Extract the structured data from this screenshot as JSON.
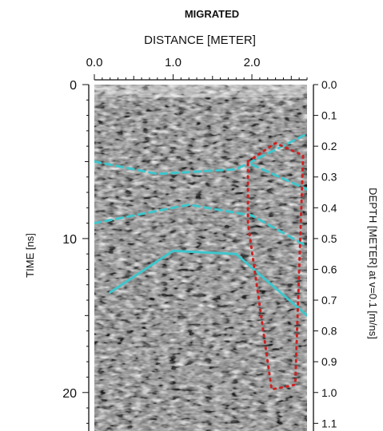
{
  "chart_data": {
    "type": "radargram",
    "title": "MIGRATED",
    "xlabel": "DISTANCE [METER]",
    "ylabel_left": "TIME [ns]",
    "ylabel_right": "DEPTH [METER] at v=0.1 [m/ns]",
    "x_ticks": [
      "0.0",
      "1.0",
      "2.0"
    ],
    "x_tick_values": [
      0,
      1,
      2
    ],
    "xlim": [
      0,
      2.7
    ],
    "time_ticks": [
      "0",
      "10",
      "20"
    ],
    "time_tick_values": [
      0,
      10,
      20
    ],
    "time_lim": [
      0,
      22.5
    ],
    "depth_ticks": [
      "0.0",
      "0.1",
      "0.2",
      "0.3",
      "0.4",
      "0.5",
      "0.6",
      "0.7",
      "0.8",
      "0.9",
      "1.0",
      "1.1"
    ],
    "depth_tick_values": [
      0,
      0.1,
      0.2,
      0.3,
      0.4,
      0.5,
      0.6,
      0.7,
      0.8,
      0.9,
      1.0,
      1.1
    ],
    "velocity_m_per_ns": 0.1,
    "colors": {
      "interpretation": "#3ec6cc",
      "zone": "#cc2222",
      "axis": "#111111"
    },
    "interpretations": [
      {
        "style": "dashed",
        "points": [
          [
            0,
            5.0
          ],
          [
            0.8,
            5.8
          ],
          [
            1.8,
            5.5
          ],
          [
            2.7,
            3.2
          ]
        ]
      },
      {
        "style": "dashed",
        "points": [
          [
            0,
            9.0
          ],
          [
            1.2,
            7.8
          ],
          [
            2.0,
            8.5
          ],
          [
            2.7,
            10.5
          ]
        ]
      },
      {
        "style": "dashed",
        "points": [
          [
            2.0,
            5.2
          ],
          [
            2.7,
            6.8
          ]
        ]
      },
      {
        "style": "solid",
        "points": [
          [
            0.2,
            13.5
          ],
          [
            1.0,
            10.8
          ],
          [
            1.8,
            11.0
          ],
          [
            2.7,
            15.0
          ]
        ]
      }
    ],
    "zone": {
      "style": "dotted",
      "points": [
        [
          1.95,
          5.0
        ],
        [
          2.3,
          3.8
        ],
        [
          2.65,
          4.6
        ],
        [
          2.55,
          19.5
        ],
        [
          2.25,
          19.8
        ],
        [
          1.95,
          9.0
        ]
      ]
    }
  }
}
